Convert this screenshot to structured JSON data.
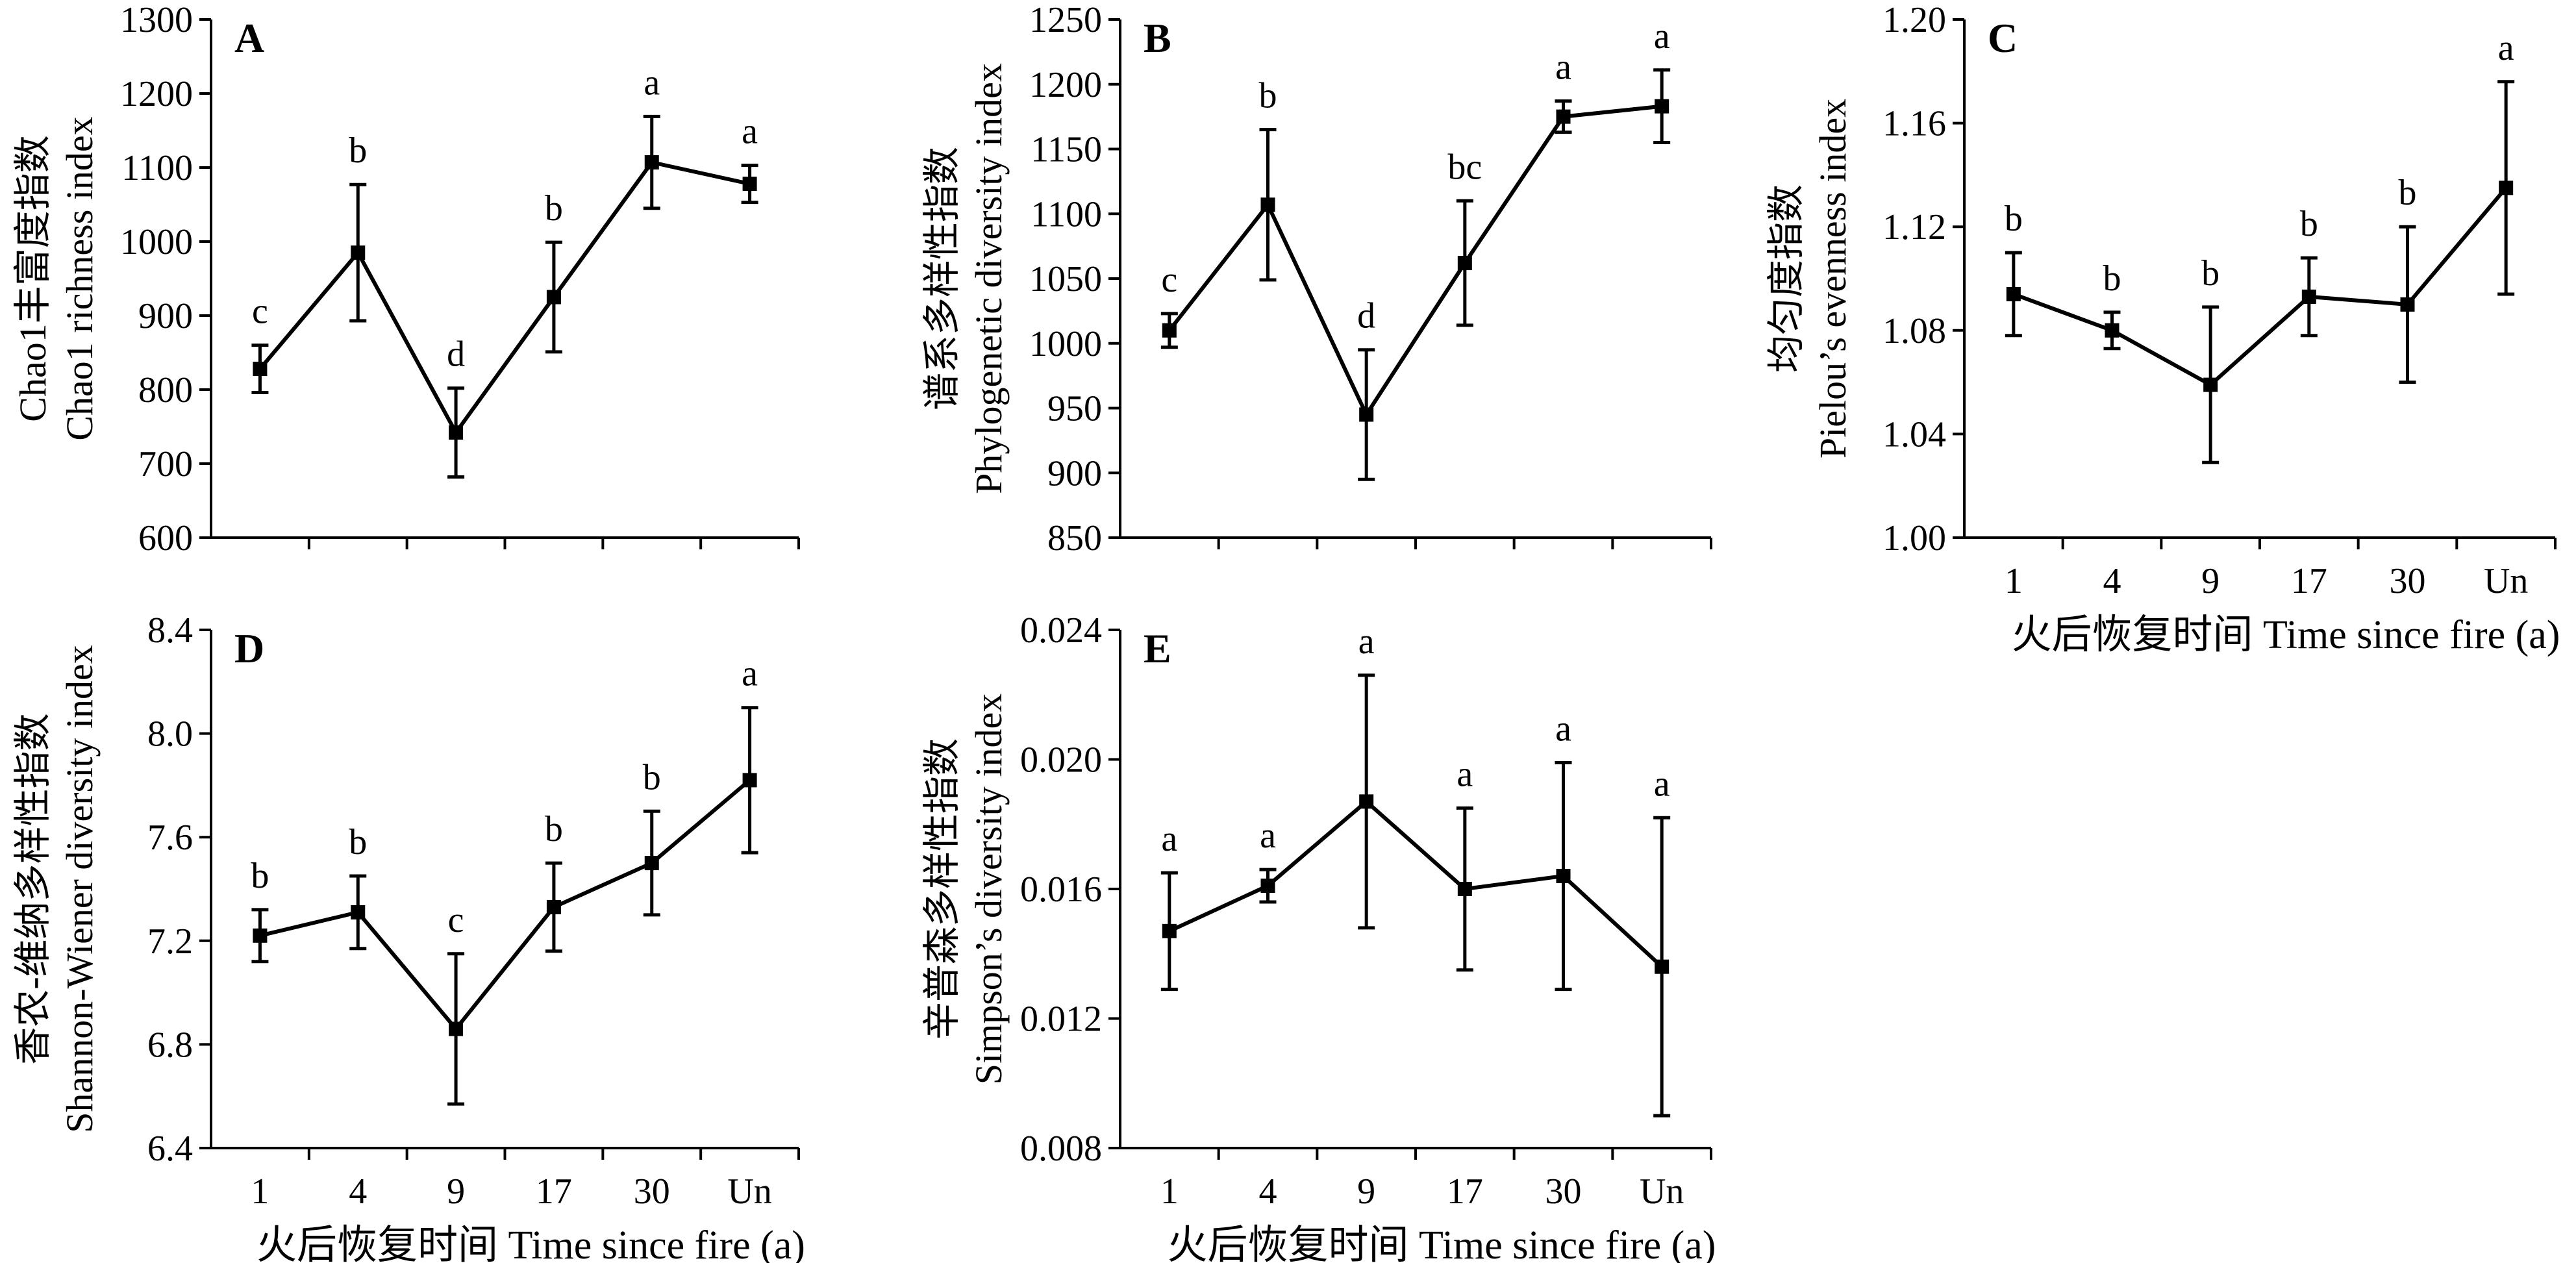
{
  "x_axis_title": "火后恢复时间 Time since fire (a)",
  "chart_data": [
    {
      "type": "line",
      "panel": "A",
      "ylabel": [
        "Chao1丰富度指数",
        "Chao1 richness index"
      ],
      "xlabel": "",
      "categories": [
        "1",
        "4",
        "9",
        "17",
        "30",
        "Un"
      ],
      "show_x_tick_labels": false,
      "values": [
        828,
        985,
        742,
        925,
        1107,
        1078
      ],
      "error": [
        32,
        92,
        60,
        74,
        62,
        25
      ],
      "significance": [
        "c",
        "b",
        "d",
        "b",
        "a",
        "a"
      ],
      "ylim": [
        600,
        1300
      ],
      "yticks": [
        600,
        700,
        800,
        900,
        1000,
        1100,
        1200,
        1300
      ],
      "ytick_labels": [
        "600",
        "700",
        "800",
        "900",
        "1000",
        "1100",
        "1200",
        "1300"
      ]
    },
    {
      "type": "line",
      "panel": "B",
      "ylabel": [
        "谱系多样性指数",
        "Phylogenetic diversity index"
      ],
      "xlabel": "",
      "categories": [
        "1",
        "4",
        "9",
        "17",
        "30",
        "Un"
      ],
      "show_x_tick_labels": false,
      "values": [
        1010,
        1107,
        945,
        1062,
        1175,
        1183
      ],
      "error": [
        13,
        58,
        50,
        48,
        12,
        28
      ],
      "significance": [
        "c",
        "b",
        "d",
        "bc",
        "a",
        "a"
      ],
      "ylim": [
        850,
        1250
      ],
      "yticks": [
        850,
        900,
        950,
        1000,
        1050,
        1100,
        1150,
        1200,
        1250
      ],
      "ytick_labels": [
        "850",
        "900",
        "950",
        "1000",
        "1050",
        "1100",
        "1150",
        "1200",
        "1250"
      ]
    },
    {
      "type": "line",
      "panel": "C",
      "ylabel": [
        "均匀度指数",
        "Pielou’s evenness index"
      ],
      "xlabel": "火后恢复时间 Time since fire (a)",
      "categories": [
        "1",
        "4",
        "9",
        "17",
        "30",
        "Un"
      ],
      "show_x_tick_labels": true,
      "values": [
        1.094,
        1.08,
        1.059,
        1.093,
        1.09,
        1.135
      ],
      "error": [
        0.016,
        0.007,
        0.03,
        0.015,
        0.03,
        0.041
      ],
      "significance": [
        "b",
        "b",
        "b",
        "b",
        "b",
        "a"
      ],
      "ylim": [
        1.0,
        1.2
      ],
      "yticks": [
        1.0,
        1.04,
        1.08,
        1.12,
        1.16,
        1.2
      ],
      "ytick_labels": [
        "1.00",
        "1.04",
        "1.08",
        "1.12",
        "1.16",
        "1.20"
      ]
    },
    {
      "type": "line",
      "panel": "D",
      "ylabel": [
        "香农-维纳多样性指数",
        "Shannon-Wiener diversity index"
      ],
      "xlabel": "火后恢复时间 Time since fire (a)",
      "categories": [
        "1",
        "4",
        "9",
        "17",
        "30",
        "Un"
      ],
      "show_x_tick_labels": true,
      "values": [
        7.22,
        7.31,
        6.86,
        7.33,
        7.5,
        7.82
      ],
      "error": [
        0.1,
        0.14,
        0.29,
        0.17,
        0.2,
        0.28
      ],
      "significance": [
        "b",
        "b",
        "c",
        "b",
        "b",
        "a"
      ],
      "ylim": [
        6.4,
        8.4
      ],
      "yticks": [
        6.4,
        6.8,
        7.2,
        7.6,
        8.0,
        8.4
      ],
      "ytick_labels": [
        "6.4",
        "6.8",
        "7.2",
        "7.6",
        "8.0",
        "8.4"
      ]
    },
    {
      "type": "line",
      "panel": "E",
      "ylabel": [
        "辛普森多样性指数",
        "Simpson’s diversity index"
      ],
      "xlabel": "火后恢复时间 Time since fire (a)",
      "categories": [
        "1",
        "4",
        "9",
        "17",
        "30",
        "Un"
      ],
      "show_x_tick_labels": true,
      "values": [
        0.0147,
        0.0161,
        0.0187,
        0.016,
        0.0164,
        0.0136
      ],
      "error": [
        0.0018,
        0.0005,
        0.0039,
        0.0025,
        0.0035,
        0.0046
      ],
      "significance": [
        "a",
        "a",
        "a",
        "a",
        "a",
        "a"
      ],
      "ylim": [
        0.008,
        0.024
      ],
      "yticks": [
        0.008,
        0.012,
        0.016,
        0.02,
        0.024
      ],
      "ytick_labels": [
        "0.008",
        "0.012",
        "0.016",
        "0.020",
        "0.024"
      ]
    }
  ]
}
